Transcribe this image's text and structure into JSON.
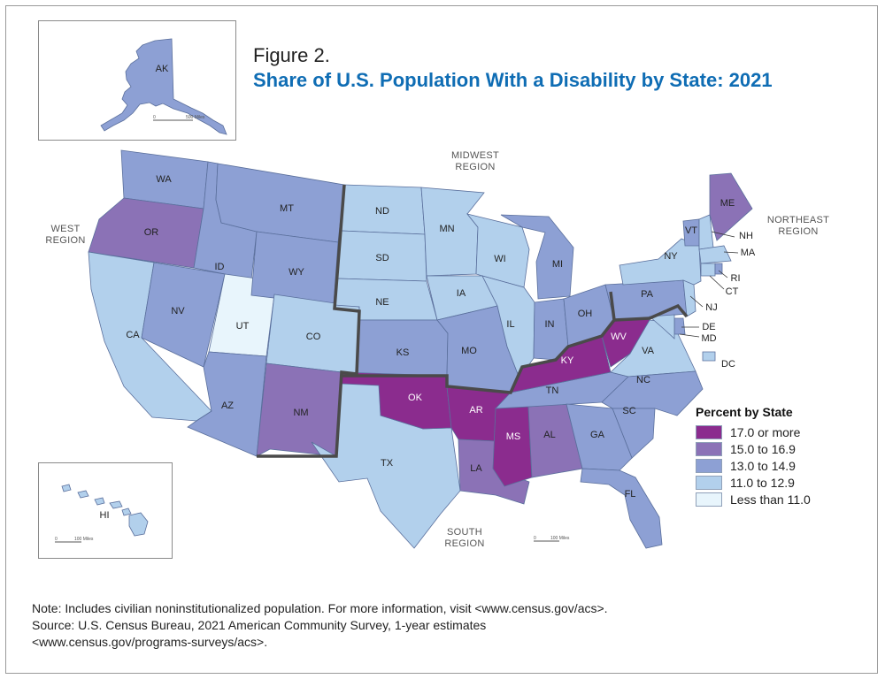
{
  "figure": {
    "label": "Figure 2.",
    "title": "Share of U.S. Population With a Disability by State: 2021"
  },
  "regions": {
    "west": [
      "WEST",
      "REGION"
    ],
    "midwest": [
      "MIDWEST",
      "REGION"
    ],
    "northeast": [
      "NORTHEAST",
      "REGION"
    ],
    "south": [
      "SOUTH",
      "REGION"
    ]
  },
  "legend": {
    "title": "Percent by State",
    "items": [
      {
        "label": "17.0 or more",
        "color": "#8b2c8e"
      },
      {
        "label": "15.0 to 16.9",
        "color": "#8b72b6"
      },
      {
        "label": "13.0 to 14.9",
        "color": "#8da0d4"
      },
      {
        "label": "11.0 to 12.9",
        "color": "#b2d0ec"
      },
      {
        "label": "Less than 11.0",
        "color": "#e8f5fc"
      }
    ]
  },
  "insets": {
    "alaska": {
      "label": "AK",
      "scale_start": "0",
      "scale_end": "500 Miles"
    },
    "hawaii": {
      "label": "HI",
      "scale_start": "0",
      "scale_end": "100 Miles"
    }
  },
  "mainland_scale": {
    "start": "0",
    "end": "100 Miles"
  },
  "states": [
    {
      "code": "WA",
      "category": 2
    },
    {
      "code": "OR",
      "category": 1
    },
    {
      "code": "CA",
      "category": 3
    },
    {
      "code": "ID",
      "category": 2
    },
    {
      "code": "NV",
      "category": 2
    },
    {
      "code": "UT",
      "category": 4
    },
    {
      "code": "AZ",
      "category": 2
    },
    {
      "code": "MT",
      "category": 2
    },
    {
      "code": "WY",
      "category": 2
    },
    {
      "code": "CO",
      "category": 3
    },
    {
      "code": "NM",
      "category": 1
    },
    {
      "code": "ND",
      "category": 3
    },
    {
      "code": "SD",
      "category": 3
    },
    {
      "code": "NE",
      "category": 3
    },
    {
      "code": "KS",
      "category": 2
    },
    {
      "code": "MN",
      "category": 3
    },
    {
      "code": "IA",
      "category": 3
    },
    {
      "code": "MO",
      "category": 2
    },
    {
      "code": "WI",
      "category": 3
    },
    {
      "code": "IL",
      "category": 3
    },
    {
      "code": "MI",
      "category": 2
    },
    {
      "code": "IN",
      "category": 2
    },
    {
      "code": "OH",
      "category": 2
    },
    {
      "code": "TX",
      "category": 3
    },
    {
      "code": "OK",
      "category": 0
    },
    {
      "code": "AR",
      "category": 0
    },
    {
      "code": "LA",
      "category": 1
    },
    {
      "code": "MS",
      "category": 0
    },
    {
      "code": "AL",
      "category": 1
    },
    {
      "code": "TN",
      "category": 2
    },
    {
      "code": "KY",
      "category": 0
    },
    {
      "code": "WV",
      "category": 0
    },
    {
      "code": "VA",
      "category": 3
    },
    {
      "code": "NC",
      "category": 2
    },
    {
      "code": "SC",
      "category": 2
    },
    {
      "code": "GA",
      "category": 2
    },
    {
      "code": "FL",
      "category": 2
    },
    {
      "code": "PA",
      "category": 2
    },
    {
      "code": "NY",
      "category": 3
    },
    {
      "code": "NJ",
      "category": 3
    },
    {
      "code": "DE",
      "category": 2
    },
    {
      "code": "MD",
      "category": 3
    },
    {
      "code": "DC",
      "category": 3
    },
    {
      "code": "VT",
      "category": 2
    },
    {
      "code": "NH",
      "category": 3
    },
    {
      "code": "ME",
      "category": 1
    },
    {
      "code": "MA",
      "category": 3
    },
    {
      "code": "CT",
      "category": 3
    },
    {
      "code": "RI",
      "category": 2
    },
    {
      "code": "AK",
      "category": 2
    },
    {
      "code": "HI",
      "category": 3
    }
  ],
  "note": "Note: Includes civilian noninstitutionalized population. For more information, visit <www.census.gov/acs>.",
  "source_line1": "Source: U.S. Census Bureau, 2021 American Community Survey, 1-year estimates",
  "source_line2": "<www.census.gov/programs-surveys/acs>."
}
